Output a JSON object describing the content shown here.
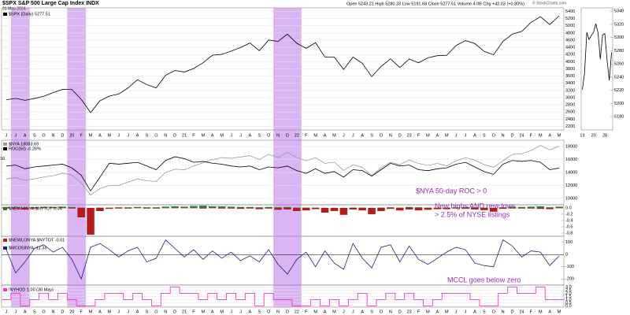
{
  "chart_data": [
    {
      "type": "line",
      "title": "$SPX S&P 500 Large Cap Index INDX",
      "subtitle": "31-May-2024",
      "quote": "Open 5243.21 High 5280.33 Low 5191.68 Close 5277.51 Volume 4.0B Chg +42.03 (+0.80%)",
      "watermark": "© StockCharts.com",
      "categories": [
        "J",
        "J",
        "A",
        "S",
        "O",
        "N",
        "D",
        "20",
        "F",
        "M",
        "A",
        "M",
        "J",
        "J",
        "A",
        "S",
        "O",
        "N",
        "D",
        "21",
        "F",
        "M",
        "A",
        "M",
        "J",
        "J",
        "A",
        "S",
        "O",
        "N",
        "D",
        "22",
        "F",
        "M",
        "A",
        "M",
        "J",
        "J",
        "A",
        "S",
        "O",
        "N",
        "D",
        "23",
        "F",
        "M",
        "A",
        "M",
        "J",
        "J",
        "A",
        "S",
        "O",
        "N",
        "D",
        "24",
        "F",
        "M",
        "A",
        "M"
      ],
      "series": [
        {
          "name": "$SPX (Daily) 5277.51",
          "color": "#000000",
          "values": [
            2940,
            2980,
            2926,
            2976,
            3037,
            3140,
            3230,
            3225,
            2954,
            2584,
            2912,
            3044,
            3100,
            3271,
            3500,
            3363,
            3270,
            3621,
            3756,
            3714,
            3811,
            3972,
            4181,
            4204,
            4297,
            4395,
            4522,
            4307,
            4605,
            4567,
            4766,
            4515,
            4373,
            4530,
            4131,
            4132,
            3785,
            4130,
            3955,
            3585,
            3871,
            4080,
            3839,
            4076,
            3970,
            4109,
            4169,
            4179,
            4450,
            4588,
            4507,
            4288,
            4193,
            4567,
            4769,
            4845,
            5096,
            5254,
            5035,
            5277.51
          ]
        }
      ],
      "ylim": [
        2100,
        5500
      ],
      "yticks": [
        2200,
        2400,
        2600,
        2800,
        3000,
        3200,
        3400,
        3600,
        3800,
        4000,
        4200,
        4400,
        4600,
        4800,
        5000,
        5200,
        5400
      ],
      "highlights": [
        [
          1,
          2
        ],
        [
          7,
          8
        ],
        [
          29,
          31
        ]
      ],
      "grid": true
    },
    {
      "type": "line",
      "series": [
        {
          "name": "$NYA 18083.69",
          "color": "#999999",
          "values": [
            13000,
            13200,
            12800,
            13000,
            13300,
            13500,
            13900,
            13600,
            12400,
            10500,
            11500,
            12000,
            12000,
            12500,
            13000,
            12700,
            12600,
            14000,
            14500,
            14400,
            15000,
            15500,
            16000,
            16300,
            16200,
            16400,
            16600,
            16000,
            16800,
            16300,
            17100,
            16300,
            15800,
            16300,
            15400,
            15600,
            14300,
            15200,
            14800,
            13500,
            14700,
            15600,
            15200,
            15900,
            15400,
            15100,
            15400,
            15000,
            15800,
            16300,
            15900,
            15200,
            14800,
            15800,
            16800,
            16900,
            17400,
            18200,
            17500,
            18083.69
          ]
        },
        {
          "name": "ROC(50) -0.26%",
          "color": "#000000",
          "axis": "y2",
          "values": [
            2,
            3,
            -1,
            1,
            2,
            3,
            4,
            0,
            -8,
            -25,
            -10,
            5,
            4,
            5,
            6,
            2,
            -2,
            8,
            12,
            10,
            6,
            7,
            5,
            4,
            2,
            1,
            2,
            -2,
            1,
            0,
            2,
            -3,
            -6,
            -1,
            -6,
            -4,
            -10,
            -2,
            -3,
            -9,
            -2,
            5,
            2,
            3,
            -2,
            -3,
            -1,
            0,
            4,
            6,
            1,
            -4,
            -7,
            4,
            8,
            7,
            8,
            6,
            -2,
            -0.26
          ]
        }
      ],
      "ylim": [
        9000,
        19000
      ],
      "yticks": [
        10000,
        12000,
        14000,
        16000,
        18000
      ],
      "y2lim": [
        -40,
        30
      ],
      "y2ticks": [
        10
      ],
      "annotations": [
        "$NYA 50-day ROC > 0"
      ],
      "grid": true
    },
    {
      "type": "bar",
      "series": [
        {
          "name": "$NEWHINYA:$NYTOT 0.04",
          "color": "#2e7d32",
          "values": [
            0.03,
            0.02,
            0.01,
            0.02,
            0.03,
            0.03,
            0.04,
            0.03,
            0.01,
            0,
            0.01,
            0.01,
            0.02,
            0.02,
            0.03,
            0.02,
            0.02,
            0.04,
            0.05,
            0.04,
            0.06,
            0.07,
            0.05,
            0.05,
            0.04,
            0.03,
            0.03,
            0.02,
            0.03,
            0.02,
            0.03,
            0.01,
            0.01,
            0.01,
            0,
            0,
            0,
            0.01,
            0.01,
            0,
            0.01,
            0.02,
            0.01,
            0.03,
            0.02,
            0.01,
            0.01,
            0.01,
            0.02,
            0.03,
            0.02,
            0.01,
            0,
            0.02,
            0.04,
            0.03,
            0.04,
            0.05,
            0.02,
            0.04
          ]
        },
        {
          "name": "$NEWLONYA:$NYTOT -0.01",
          "color": "#b71c1c",
          "values": [
            -0.02,
            -0.03,
            -0.05,
            -0.02,
            -0.01,
            -0.01,
            -0.01,
            -0.02,
            -0.3,
            -0.85,
            -0.1,
            -0.03,
            -0.02,
            -0.02,
            -0.01,
            -0.02,
            -0.02,
            -0.01,
            -0.01,
            -0.01,
            -0.01,
            -0.02,
            -0.01,
            -0.02,
            -0.02,
            -0.03,
            -0.02,
            -0.04,
            -0.02,
            -0.06,
            -0.05,
            -0.1,
            -0.08,
            -0.04,
            -0.15,
            -0.1,
            -0.22,
            -0.05,
            -0.08,
            -0.2,
            -0.1,
            -0.03,
            -0.08,
            -0.05,
            -0.08,
            -0.06,
            -0.04,
            -0.04,
            -0.02,
            -0.03,
            -0.05,
            -0.07,
            -0.12,
            -0.03,
            -0.02,
            -0.02,
            -0.02,
            -0.03,
            -0.04,
            -0.01
          ]
        }
      ],
      "ylim": [
        -0.9,
        0.1
      ],
      "yticks": [
        {
          "value": 0,
          "label": "0.0"
        },
        -0.2,
        -0.4,
        -0.6,
        -0.8
      ],
      "annotations": [
        "New highs AND new lows",
        "> 2.5% of NYSE listings"
      ]
    },
    {
      "type": "line",
      "series": [
        {
          "name": "$MCOSINYA -11.33",
          "color": "#1a237e",
          "values": [
            40,
            -150,
            -60,
            50,
            80,
            20,
            60,
            -40,
            -200,
            60,
            90,
            40,
            -20,
            30,
            60,
            -60,
            -30,
            120,
            50,
            -20,
            40,
            -40,
            30,
            -30,
            20,
            -50,
            -10,
            -60,
            40,
            -80,
            -160,
            -40,
            20,
            -100,
            30,
            -70,
            -120,
            90,
            -30,
            -110,
            60,
            80,
            -60,
            70,
            -40,
            -80,
            -30,
            20,
            60,
            40,
            -70,
            -90,
            -100,
            120,
            70,
            -20,
            30,
            20,
            -90,
            -11.33
          ]
        }
      ],
      "ylim": [
        -250,
        150
      ],
      "yticks": [
        -200,
        -100,
        0,
        100
      ],
      "annotations": [
        "MCCL goes below zero"
      ],
      "zero_line": true
    },
    {
      "type": "step",
      "series": [
        {
          "name": "!NYHOD 1.00 (30 May)",
          "color": "#ff33cc",
          "values": [
            1,
            2,
            0,
            1,
            2,
            1,
            2,
            1,
            0,
            0,
            1,
            2,
            2,
            1,
            2,
            1,
            0,
            2,
            3,
            2,
            2,
            1,
            2,
            1,
            2,
            1,
            2,
            0,
            2,
            1,
            1,
            0,
            0,
            1,
            0,
            1,
            0,
            1,
            2,
            0,
            1,
            2,
            1,
            2,
            1,
            0,
            1,
            2,
            2,
            2,
            1,
            0,
            0,
            2,
            3,
            2,
            2,
            3,
            1,
            1
          ]
        }
      ],
      "ylim": [
        -0.2,
        3.3
      ],
      "yticks": [
        {
          "value": 0,
          "label": "0.0"
        },
        {
          "value": 0.5,
          "label": "0.5"
        },
        {
          "value": 1,
          "label": "1.0"
        },
        {
          "value": 1.5,
          "label": "1.5"
        },
        {
          "value": 2,
          "label": "2.0"
        },
        {
          "value": 2.5,
          "label": "2.5"
        },
        {
          "value": 3,
          "label": "3.0"
        }
      ],
      "grid": true
    },
    {
      "type": "line",
      "categories": [
        "13",
        null,
        null,
        null,
        null,
        "20",
        null,
        null,
        null,
        null,
        "28",
        null,
        null,
        null
      ],
      "series": [
        {
          "color": "#000000",
          "values": [
            5221,
            5246,
            5308,
            5297,
            5303,
            5308,
            5321,
            5307,
            5267,
            5304,
            5306,
            5266,
            5235,
            5277.51
          ]
        }
      ],
      "ylim": [
        5160,
        5345
      ],
      "yticks": [
        5180,
        5200,
        5220,
        5240,
        5260,
        5280,
        5300,
        5320,
        5340
      ]
    }
  ]
}
